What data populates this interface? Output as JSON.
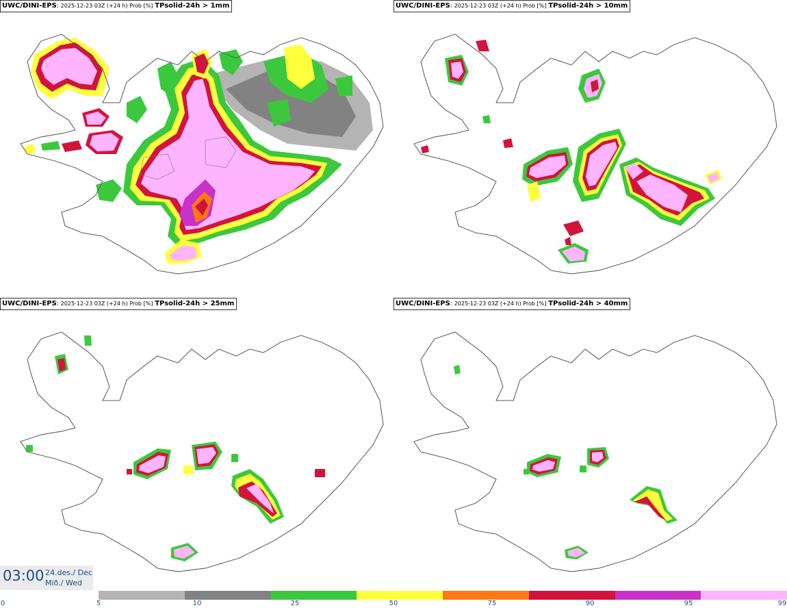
{
  "panels": [
    {
      "model": "UWC/DINI-EPS",
      "run": "2025-12-23 03Z (+24 h) Prob [%]",
      "param": "TPsolid-24h > 1mm"
    },
    {
      "model": "UWC/DINI-EPS",
      "run": "2025-12-23 03Z (+24 h) Prob [%]",
      "param": "TPsolid-24h > 10mm"
    },
    {
      "model": "UWC/DINI-EPS",
      "run": "2025-12-23 03Z (+24 h) Prob [%]",
      "param": "TPsolid-24h > 25mm"
    },
    {
      "model": "UWC/DINI-EPS",
      "run": "2025-12-23 03Z (+24 h) Prob [%]",
      "param": "TPsolid-24h > 40mm"
    }
  ],
  "time": {
    "hour": "03:00",
    "date": "24.des./ Dec",
    "weekday": "Mið./ Wed"
  },
  "legend": {
    "ticks": [
      "0",
      "5",
      "10",
      "25",
      "50",
      "75",
      "90",
      "95",
      "99"
    ],
    "colors": [
      "#b4b4b4",
      "#828282",
      "#3cc83c",
      "#ffff3c",
      "#ff7814",
      "#d2143c",
      "#c832c8",
      "#ffb4ff"
    ]
  },
  "colors": {
    "gray_light": "#b4b4b4",
    "gray_dark": "#828282",
    "green": "#3cc83c",
    "yellow": "#ffff3c",
    "orange": "#ff7814",
    "red": "#d2143c",
    "purple": "#c832c8",
    "pink": "#ffb4ff",
    "text_blue": "#1a4f8a"
  }
}
